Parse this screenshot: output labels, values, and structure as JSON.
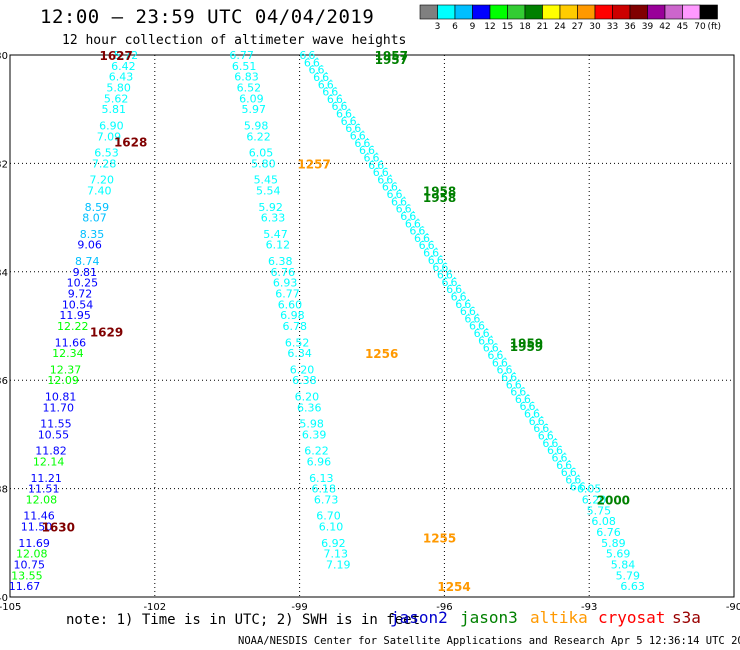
{
  "title": "12:00 – 23:59 UTC 04/04/2019",
  "subtitle": "12 hour collection of altimeter wave heights",
  "credit": "NOAA/NESDIS Center for Satellite Applications and Research    Apr  5 12:36:14 UTC 2019",
  "note": "note: 1) Time is in UTC; 2) SWH is in feet",
  "colorbar": {
    "unit": "(ft)",
    "bins": [
      {
        "label": "3",
        "color": "#808080"
      },
      {
        "label": "6",
        "color": "#00ffff"
      },
      {
        "label": "9",
        "color": "#00bfff"
      },
      {
        "label": "12",
        "color": "#0000ff"
      },
      {
        "label": "15",
        "color": "#00ff00"
      },
      {
        "label": "18",
        "color": "#33cc33"
      },
      {
        "label": "21",
        "color": "#008000"
      },
      {
        "label": "24",
        "color": "#ffff00"
      },
      {
        "label": "27",
        "color": "#ffcc00"
      },
      {
        "label": "30",
        "color": "#ff9900"
      },
      {
        "label": "33",
        "color": "#ff0000"
      },
      {
        "label": "36",
        "color": "#cc0000"
      },
      {
        "label": "39",
        "color": "#800000"
      },
      {
        "label": "42",
        "color": "#990099"
      },
      {
        "label": "45",
        "color": "#cc66cc"
      },
      {
        "label": "70",
        "color": "#ff99ff"
      },
      {
        "label": "",
        "color": "#000000"
      }
    ]
  },
  "axes": {
    "lon_range": [
      -105,
      -90
    ],
    "lat_range": [
      -40,
      -30
    ],
    "lon_ticks": [
      "-105",
      "-102",
      "-99",
      "-96",
      "-93",
      "-90"
    ],
    "lat_ticks": [
      "-30",
      "-32",
      "-34",
      "-36",
      "-38",
      "-40"
    ],
    "grid": "dotted"
  },
  "missions": [
    {
      "name": "jason2",
      "color": "#0000cc"
    },
    {
      "name": "jason3",
      "color": "#008000"
    },
    {
      "name": "altika",
      "color": "#ff9900"
    },
    {
      "name": "cryosat",
      "color": "#ff0000"
    },
    {
      "name": "s3a",
      "color": "#990000"
    }
  ],
  "time_labels": [
    {
      "text": "1627",
      "lon": -102.8,
      "lat": -30.0,
      "color": "#800000"
    },
    {
      "text": "1628",
      "lon": -102.5,
      "lat": -31.6,
      "color": "#800000"
    },
    {
      "text": "1629",
      "lon": -103.0,
      "lat": -35.1,
      "color": "#800000"
    },
    {
      "text": "1630",
      "lon": -104.0,
      "lat": -38.7,
      "color": "#800000"
    },
    {
      "text": "1957",
      "lon": -97.1,
      "lat": -30.0,
      "color": "#008000"
    },
    {
      "text": "1957",
      "lon": -97.1,
      "lat": -30.07,
      "color": "#008000"
    },
    {
      "text": "1958",
      "lon": -96.1,
      "lat": -32.5,
      "color": "#008000"
    },
    {
      "text": "1958",
      "lon": -96.1,
      "lat": -32.62,
      "color": "#008000"
    },
    {
      "text": "1959",
      "lon": -94.3,
      "lat": -35.3,
      "color": "#008000"
    },
    {
      "text": "1959",
      "lon": -94.3,
      "lat": -35.37,
      "color": "#008000"
    },
    {
      "text": "2000",
      "lon": -92.5,
      "lat": -38.2,
      "color": "#008000"
    },
    {
      "text": "1257",
      "lon": -98.7,
      "lat": -32.0,
      "color": "#ff9900"
    },
    {
      "text": "1256",
      "lon": -97.3,
      "lat": -35.5,
      "color": "#ff9900"
    },
    {
      "text": "1255",
      "lon": -96.1,
      "lat": -38.9,
      "color": "#ff9900"
    },
    {
      "text": "1254",
      "lon": -95.8,
      "lat": -39.8,
      "color": "#ff9900"
    }
  ],
  "tracks": [
    {
      "name": "s3a-1627",
      "color_hint": "mixed",
      "points": [
        {
          "v": "5.72",
          "lon": -102.6,
          "lat": -30.0,
          "c": "#00ffff"
        },
        {
          "v": "6.42",
          "lon": -102.65,
          "lat": -30.2,
          "c": "#00ffff"
        },
        {
          "v": "6.43",
          "lon": -102.7,
          "lat": -30.4,
          "c": "#00ffff"
        },
        {
          "v": "5.80",
          "lon": -102.75,
          "lat": -30.6,
          "c": "#00ffff"
        },
        {
          "v": "5.62",
          "lon": -102.8,
          "lat": -30.8,
          "c": "#00ffff"
        },
        {
          "v": "5.81",
          "lon": -102.85,
          "lat": -31.0,
          "c": "#00ffff"
        },
        {
          "v": "6.90",
          "lon": -102.9,
          "lat": -31.3,
          "c": "#00ffff"
        },
        {
          "v": "7.09",
          "lon": -102.95,
          "lat": -31.5,
          "c": "#00ffff"
        },
        {
          "v": "6.53",
          "lon": -103.0,
          "lat": -31.8,
          "c": "#00ffff"
        },
        {
          "v": "7.28",
          "lon": -103.05,
          "lat": -32.0,
          "c": "#00ffff"
        },
        {
          "v": "7.20",
          "lon": -103.1,
          "lat": -32.3,
          "c": "#00ffff"
        },
        {
          "v": "7.40",
          "lon": -103.15,
          "lat": -32.5,
          "c": "#00ffff"
        },
        {
          "v": "8.59",
          "lon": -103.2,
          "lat": -32.8,
          "c": "#00bfff"
        },
        {
          "v": "8.07",
          "lon": -103.25,
          "lat": -33.0,
          "c": "#00bfff"
        },
        {
          "v": "8.35",
          "lon": -103.3,
          "lat": -33.3,
          "c": "#00bfff"
        },
        {
          "v": "9.06",
          "lon": -103.35,
          "lat": -33.5,
          "c": "#0000ff"
        },
        {
          "v": "8.74",
          "lon": -103.4,
          "lat": -33.8,
          "c": "#00bfff"
        },
        {
          "v": "9.81",
          "lon": -103.45,
          "lat": -34.0,
          "c": "#0000ff"
        },
        {
          "v": "10.25",
          "lon": -103.5,
          "lat": -34.2,
          "c": "#0000ff"
        },
        {
          "v": "9.72",
          "lon": -103.55,
          "lat": -34.4,
          "c": "#0000ff"
        },
        {
          "v": "10.54",
          "lon": -103.6,
          "lat": -34.6,
          "c": "#0000ff"
        },
        {
          "v": "11.95",
          "lon": -103.65,
          "lat": -34.8,
          "c": "#0000ff"
        },
        {
          "v": "12.22",
          "lon": -103.7,
          "lat": -35.0,
          "c": "#00ff00"
        },
        {
          "v": "11.66",
          "lon": -103.75,
          "lat": -35.3,
          "c": "#0000ff"
        },
        {
          "v": "12.34",
          "lon": -103.8,
          "lat": -35.5,
          "c": "#00ff00"
        },
        {
          "v": "12.37",
          "lon": -103.85,
          "lat": -35.8,
          "c": "#00ff00"
        },
        {
          "v": "12.09",
          "lon": -103.9,
          "lat": -36.0,
          "c": "#00ff00"
        },
        {
          "v": "10.81",
          "lon": -103.95,
          "lat": -36.3,
          "c": "#0000ff"
        },
        {
          "v": "11.70",
          "lon": -104.0,
          "lat": -36.5,
          "c": "#0000ff"
        },
        {
          "v": "11.55",
          "lon": -104.05,
          "lat": -36.8,
          "c": "#0000ff"
        },
        {
          "v": "10.55",
          "lon": -104.1,
          "lat": -37.0,
          "c": "#0000ff"
        },
        {
          "v": "11.82",
          "lon": -104.15,
          "lat": -37.3,
          "c": "#0000ff"
        },
        {
          "v": "12.14",
          "lon": -104.2,
          "lat": -37.5,
          "c": "#00ff00"
        },
        {
          "v": "11.21",
          "lon": -104.25,
          "lat": -37.8,
          "c": "#0000ff"
        },
        {
          "v": "11.51",
          "lon": -104.3,
          "lat": -38.0,
          "c": "#0000ff"
        },
        {
          "v": "12.08",
          "lon": -104.35,
          "lat": -38.2,
          "c": "#00ff00"
        },
        {
          "v": "11.46",
          "lon": -104.4,
          "lat": -38.5,
          "c": "#0000ff"
        },
        {
          "v": "11.50",
          "lon": -104.45,
          "lat": -38.7,
          "c": "#0000ff"
        },
        {
          "v": "11.69",
          "lon": -104.5,
          "lat": -39.0,
          "c": "#0000ff"
        },
        {
          "v": "12.08",
          "lon": -104.55,
          "lat": -39.2,
          "c": "#00ff00"
        },
        {
          "v": "10.75",
          "lon": -104.6,
          "lat": -39.4,
          "c": "#0000ff"
        },
        {
          "v": "13.55",
          "lon": -104.65,
          "lat": -39.6,
          "c": "#00ff00"
        },
        {
          "v": "11.67",
          "lon": -104.7,
          "lat": -39.8,
          "c": "#0000ff"
        }
      ]
    },
    {
      "name": "altika-1257",
      "color_hint": "cyan",
      "points": [
        {
          "v": "6.77",
          "lon": -100.2,
          "lat": -30.0,
          "c": "#00ffff"
        },
        {
          "v": "6.51",
          "lon": -100.15,
          "lat": -30.2,
          "c": "#00ffff"
        },
        {
          "v": "6.83",
          "lon": -100.1,
          "lat": -30.4,
          "c": "#00ffff"
        },
        {
          "v": "6.52",
          "lon": -100.05,
          "lat": -30.6,
          "c": "#00ffff"
        },
        {
          "v": "6.09",
          "lon": -100.0,
          "lat": -30.8,
          "c": "#00ffff"
        },
        {
          "v": "5.97",
          "lon": -99.95,
          "lat": -31.0,
          "c": "#00ffff"
        },
        {
          "v": "5.98",
          "lon": -99.9,
          "lat": -31.3,
          "c": "#00ffff"
        },
        {
          "v": "6.22",
          "lon": -99.85,
          "lat": -31.5,
          "c": "#00ffff"
        },
        {
          "v": "6.05",
          "lon": -99.8,
          "lat": -31.8,
          "c": "#00ffff"
        },
        {
          "v": "5.80",
          "lon": -99.75,
          "lat": -32.0,
          "c": "#00ffff"
        },
        {
          "v": "5.45",
          "lon": -99.7,
          "lat": -32.3,
          "c": "#00ffff"
        },
        {
          "v": "5.54",
          "lon": -99.65,
          "lat": -32.5,
          "c": "#00ffff"
        },
        {
          "v": "5.92",
          "lon": -99.6,
          "lat": -32.8,
          "c": "#00ffff"
        },
        {
          "v": "6.33",
          "lon": -99.55,
          "lat": -33.0,
          "c": "#00ffff"
        },
        {
          "v": "5.47",
          "lon": -99.5,
          "lat": -33.3,
          "c": "#00ffff"
        },
        {
          "v": "6.12",
          "lon": -99.45,
          "lat": -33.5,
          "c": "#00ffff"
        },
        {
          "v": "6.38",
          "lon": -99.4,
          "lat": -33.8,
          "c": "#00ffff"
        },
        {
          "v": "6.76",
          "lon": -99.35,
          "lat": -34.0,
          "c": "#00ffff"
        },
        {
          "v": "6.93",
          "lon": -99.3,
          "lat": -34.2,
          "c": "#00ffff"
        },
        {
          "v": "6.77",
          "lon": -99.25,
          "lat": -34.4,
          "c": "#00ffff"
        },
        {
          "v": "6.60",
          "lon": -99.2,
          "lat": -34.6,
          "c": "#00ffff"
        },
        {
          "v": "6.98",
          "lon": -99.15,
          "lat": -34.8,
          "c": "#00ffff"
        },
        {
          "v": "6.78",
          "lon": -99.1,
          "lat": -35.0,
          "c": "#00ffff"
        },
        {
          "v": "6.52",
          "lon": -99.05,
          "lat": -35.3,
          "c": "#00ffff"
        },
        {
          "v": "6.34",
          "lon": -99.0,
          "lat": -35.5,
          "c": "#00ffff"
        },
        {
          "v": "6.20",
          "lon": -98.95,
          "lat": -35.8,
          "c": "#00ffff"
        },
        {
          "v": "6.38",
          "lon": -98.9,
          "lat": -36.0,
          "c": "#00ffff"
        },
        {
          "v": "6.20",
          "lon": -98.85,
          "lat": -36.3,
          "c": "#00ffff"
        },
        {
          "v": "6.36",
          "lon": -98.8,
          "lat": -36.5,
          "c": "#00ffff"
        },
        {
          "v": "5.98",
          "lon": -98.75,
          "lat": -36.8,
          "c": "#00ffff"
        },
        {
          "v": "6.39",
          "lon": -98.7,
          "lat": -37.0,
          "c": "#00ffff"
        },
        {
          "v": "6.22",
          "lon": -98.65,
          "lat": -37.3,
          "c": "#00ffff"
        },
        {
          "v": "6.96",
          "lon": -98.6,
          "lat": -37.5,
          "c": "#00ffff"
        },
        {
          "v": "6.13",
          "lon": -98.55,
          "lat": -37.8,
          "c": "#00ffff"
        },
        {
          "v": "6.18",
          "lon": -98.5,
          "lat": -38.0,
          "c": "#00ffff"
        },
        {
          "v": "6.73",
          "lon": -98.45,
          "lat": -38.2,
          "c": "#00ffff"
        },
        {
          "v": "6.70",
          "lon": -98.4,
          "lat": -38.5,
          "c": "#00ffff"
        },
        {
          "v": "6.10",
          "lon": -98.35,
          "lat": -38.7,
          "c": "#00ffff"
        },
        {
          "v": "6.92",
          "lon": -98.3,
          "lat": -39.0,
          "c": "#00ffff"
        },
        {
          "v": "7.13",
          "lon": -98.25,
          "lat": -39.2,
          "c": "#00ffff"
        },
        {
          "v": "7.19",
          "lon": -98.2,
          "lat": -39.4,
          "c": "#00ffff"
        }
      ]
    },
    {
      "name": "jason3-1957",
      "color_hint": "cyan-dense",
      "points": [
        {
          "v": "6.05",
          "lon": -93.0,
          "lat": -38.0,
          "c": "#00ffff"
        },
        {
          "v": "6.20",
          "lon": -92.9,
          "lat": -38.2,
          "c": "#00ffff"
        },
        {
          "v": "5.75",
          "lon": -92.8,
          "lat": -38.4,
          "c": "#00ffff"
        },
        {
          "v": "6.08",
          "lon": -92.7,
          "lat": -38.6,
          "c": "#00ffff"
        },
        {
          "v": "6.76",
          "lon": -92.6,
          "lat": -38.8,
          "c": "#00ffff"
        },
        {
          "v": "5.89",
          "lon": -92.5,
          "lat": -39.0,
          "c": "#00ffff"
        },
        {
          "v": "5.69",
          "lon": -92.4,
          "lat": -39.2,
          "c": "#00ffff"
        },
        {
          "v": "5.84",
          "lon": -92.3,
          "lat": -39.4,
          "c": "#00ffff"
        },
        {
          "v": "5.79",
          "lon": -92.2,
          "lat": -39.6,
          "c": "#00ffff"
        },
        {
          "v": "6.63",
          "lon": -92.1,
          "lat": -39.8,
          "c": "#00ffff"
        }
      ]
    }
  ]
}
